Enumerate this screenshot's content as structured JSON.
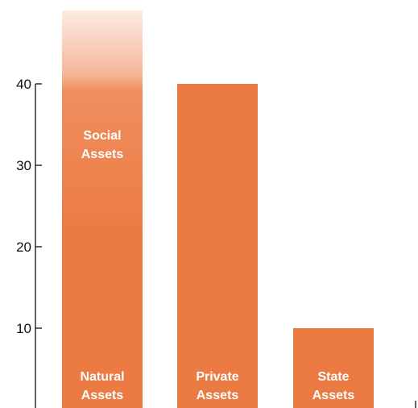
{
  "chart_data": {
    "type": "bar",
    "categories": [
      "Natural Assets",
      "Private Assets",
      "State Assets"
    ],
    "values": [
      49,
      40,
      10
    ],
    "ylim": [
      0,
      50
    ],
    "yticks": [
      10,
      20,
      30,
      40
    ],
    "grid": false,
    "bar_color": "#EC7B43",
    "series": [
      {
        "segments": [
          {
            "label_lines": [
              "Natural",
              "Assets"
            ],
            "value": 49,
            "style": "gradient-fade-top"
          },
          {
            "label_lines": [
              "Social",
              "Assets"
            ],
            "overlay": true
          }
        ]
      },
      {
        "segments": [
          {
            "label_lines": [
              "Private",
              "Assets"
            ],
            "value": 40
          }
        ]
      },
      {
        "segments": [
          {
            "label_lines": [
              "State",
              "Assets"
            ],
            "value": 10
          }
        ]
      }
    ]
  }
}
